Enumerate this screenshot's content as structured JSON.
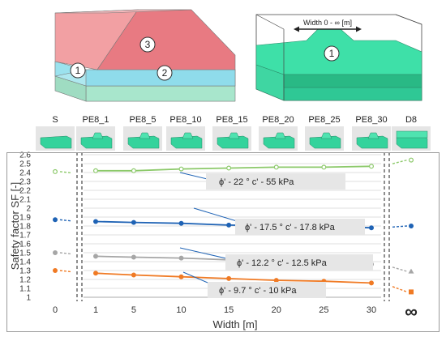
{
  "chart_data": {
    "type": "line",
    "xlabel": "Width [m]",
    "ylabel": "Safety factor SF [-]",
    "ylim": [
      1.0,
      2.6
    ],
    "yticks": [
      "1",
      "1.1",
      "1.2",
      "1.3",
      "1.4",
      "1.5",
      "1.6",
      "1.7",
      "1.8",
      "1.9",
      "2",
      "2.1",
      "2.2",
      "2.3",
      "2.4",
      "2.5",
      "2.6"
    ],
    "xticks_left": [
      "0"
    ],
    "xticks_main": [
      "1",
      "5",
      "10",
      "15",
      "20",
      "25",
      "30"
    ],
    "xtick_right": "∞",
    "grid": true,
    "cases": [
      "S",
      "PE8_1",
      "PE8_5",
      "PE8_10",
      "PE8_15",
      "PE8_20",
      "PE8_25",
      "PE8_30",
      "D8"
    ],
    "x": [
      1,
      5,
      10,
      15,
      20,
      25,
      30
    ],
    "series": [
      {
        "name": "ϕ' - 22 ° c' - 55 kPa",
        "color": "#8cc96a",
        "marker": "circle-hollow",
        "at_zero": 2.41,
        "values": [
          2.42,
          2.42,
          2.44,
          2.45,
          2.46,
          2.46,
          2.47
        ],
        "at_infinity": 2.54
      },
      {
        "name": "ϕ' - 17.5 ° c' - 17.8 kPa",
        "color": "#1f63b5",
        "marker": "circle",
        "at_zero": 1.87,
        "values": [
          1.85,
          1.84,
          1.83,
          1.81,
          1.8,
          1.79,
          1.78
        ],
        "at_infinity": 1.8
      },
      {
        "name": "ϕ' - 12.2 ° c' - 12.5 kPa",
        "color": "#a6a6a6",
        "marker": "circle",
        "at_zero": 1.5,
        "values": [
          1.46,
          1.45,
          1.44,
          1.42,
          1.4,
          1.38,
          1.37
        ],
        "at_infinity": 1.29
      },
      {
        "name": "ϕ' - 9.7 ° c' - 10 kPa",
        "color": "#f07a24",
        "marker": "circle",
        "at_zero": 1.3,
        "values": [
          1.27,
          1.25,
          1.23,
          1.21,
          1.19,
          1.18,
          1.16
        ],
        "at_infinity": 1.06
      }
    ]
  },
  "illustration_left": {
    "labels": [
      "1",
      "2",
      "3"
    ]
  },
  "illustration_right": {
    "width_label": "Width 0 - ∞ [m]",
    "labels": [
      "1"
    ]
  }
}
